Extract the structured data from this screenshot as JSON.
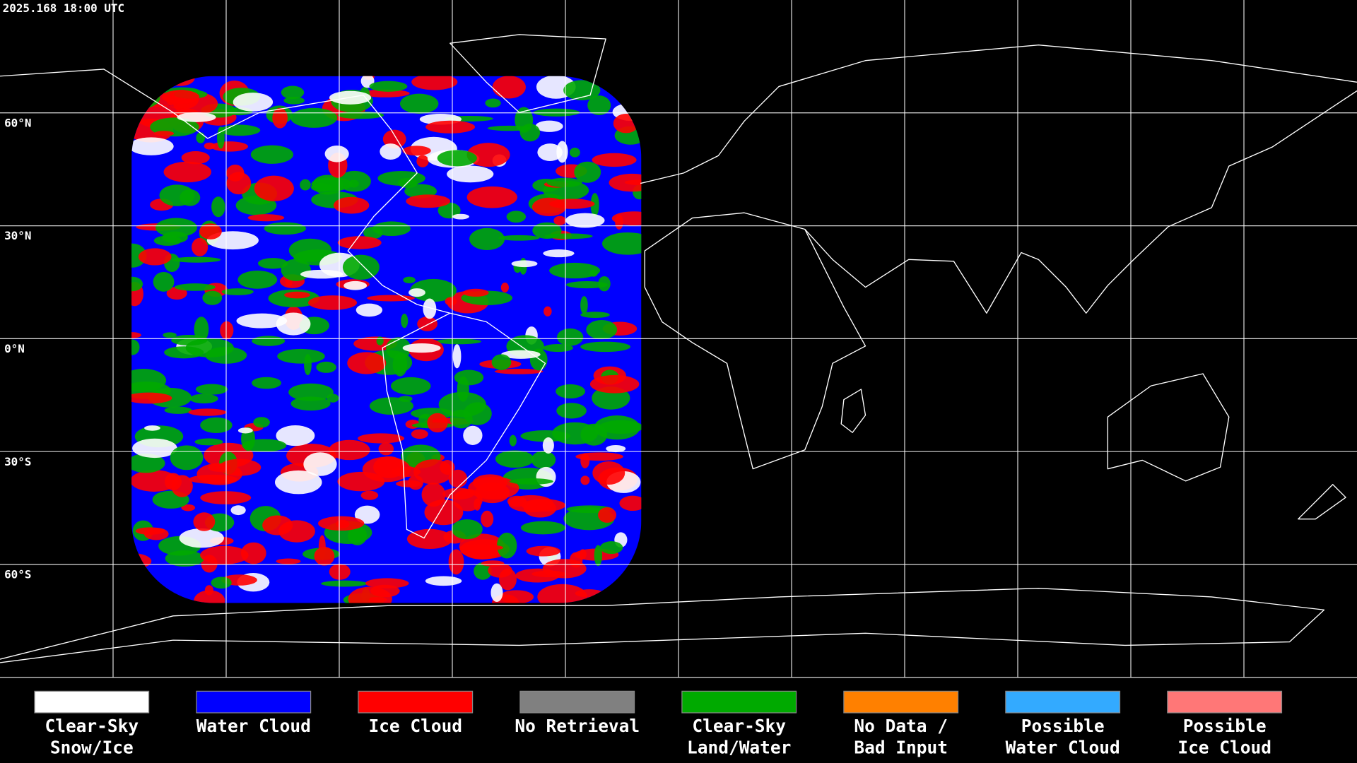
{
  "header": {
    "timestamp": "2025.168 18:00 UTC"
  },
  "lat_labels": [
    "60°N",
    "30°N",
    "0°N",
    "30°S",
    "60°S"
  ],
  "legend": [
    {
      "lines": [
        "Clear-Sky",
        "Snow/Ice"
      ],
      "color": "#ffffff"
    },
    {
      "lines": [
        "Water Cloud"
      ],
      "color": "#0000ff"
    },
    {
      "lines": [
        "Ice Cloud"
      ],
      "color": "#ff0000"
    },
    {
      "lines": [
        "No Retrieval"
      ],
      "color": "#808080"
    },
    {
      "lines": [
        "Clear-Sky",
        "Land/Water"
      ],
      "color": "#00aa00"
    },
    {
      "lines": [
        "No Data /",
        "Bad Input"
      ],
      "color": "#ff8000"
    },
    {
      "lines": [
        "Possible",
        "Water Cloud"
      ],
      "color": "#33aaff"
    },
    {
      "lines": [
        "Possible",
        "Ice Cloud"
      ],
      "color": "#ff7777"
    }
  ]
}
